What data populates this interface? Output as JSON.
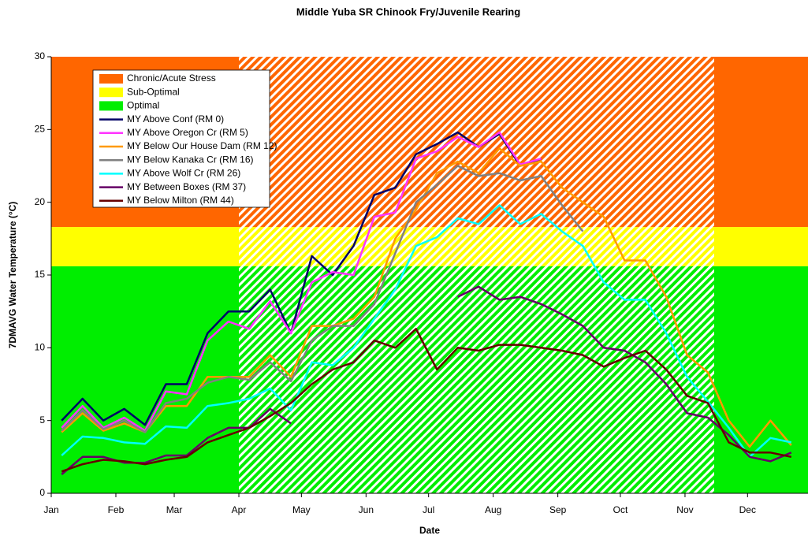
{
  "chart_data": {
    "type": "line",
    "title": "Middle Yuba SR Chinook Fry/Juvenile Rearing",
    "x_label": "Date",
    "y_label": "7DMAVG Water Temperature (°C)",
    "xlim": [
      0,
      363
    ],
    "ylim": [
      0,
      30
    ],
    "yticks": [
      0,
      5,
      10,
      15,
      20,
      25,
      30
    ],
    "xticks": [
      {
        "value": 0,
        "label": "Jan"
      },
      {
        "value": 31,
        "label": "Feb"
      },
      {
        "value": 59,
        "label": "Mar"
      },
      {
        "value": 90,
        "label": "Apr"
      },
      {
        "value": 120,
        "label": "May"
      },
      {
        "value": 151,
        "label": "Jun"
      },
      {
        "value": 181,
        "label": "Jul"
      },
      {
        "value": 212,
        "label": "Aug"
      },
      {
        "value": 243,
        "label": "Sep"
      },
      {
        "value": 273,
        "label": "Oct"
      },
      {
        "value": 304,
        "label": "Nov"
      },
      {
        "value": 334,
        "label": "Dec"
      }
    ],
    "zones": [
      {
        "name": "Chronic/Acute Stress",
        "color": "#ff6600",
        "ymin": 18.3,
        "ymax": 30
      },
      {
        "name": "Sub-Optimal",
        "color": "#ffff00",
        "ymin": 15.6,
        "ymax": 18.3
      },
      {
        "name": "Optimal",
        "color": "#00ee00",
        "ymin": 0,
        "ymax": 15.6
      }
    ],
    "hatch_x": [
      90,
      318
    ],
    "x": [
      5,
      15,
      25,
      35,
      45,
      55,
      65,
      75,
      85,
      95,
      105,
      115,
      125,
      135,
      145,
      155,
      165,
      175,
      185,
      195,
      205,
      215,
      225,
      235,
      245,
      255,
      265,
      275,
      285,
      295,
      305,
      315,
      325,
      335,
      345,
      355
    ],
    "series": [
      {
        "name": "MY Above Conf (RM 0)",
        "color": "#000066",
        "values": [
          5,
          6.5,
          5,
          5.8,
          4.7,
          7.5,
          7.5,
          11,
          12.5,
          12.5,
          14,
          11,
          16.3,
          15,
          17,
          20.5,
          21,
          23.3,
          24,
          24.8,
          23.8,
          24.7,
          22.5,
          23,
          null,
          null,
          null,
          null,
          null,
          null,
          null,
          null,
          null,
          null,
          null,
          null
        ]
      },
      {
        "name": "MY Above Oregon Cr (RM 5)",
        "color": "#ff33ff",
        "values": [
          4.5,
          6,
          4.5,
          5.2,
          4.3,
          7,
          6.8,
          10.5,
          11.8,
          11.3,
          13.2,
          11,
          14.5,
          15.2,
          15,
          19,
          19.3,
          23,
          23.5,
          24.5,
          23.8,
          24.8,
          22.6,
          23,
          null,
          null,
          null,
          null,
          null,
          null,
          null,
          null,
          null,
          null,
          null,
          null
        ]
      },
      {
        "name": "MY Below Our House Dam (RM 12)",
        "color": "#ff9900",
        "values": [
          4.2,
          5.5,
          4.3,
          4.8,
          4.2,
          6,
          6,
          8,
          8,
          8,
          9.5,
          8,
          11.5,
          11.5,
          12,
          13.5,
          17.5,
          19.5,
          22,
          22.8,
          22,
          23.7,
          22.5,
          22.8,
          21,
          20,
          19,
          16,
          16,
          13.5,
          9.5,
          8.3,
          5,
          3.2,
          5,
          3.3
        ]
      },
      {
        "name": "MY Below Kanaka Cr (RM 16)",
        "color": "#808080",
        "values": [
          4.3,
          5.7,
          4.4,
          5,
          4.2,
          6.2,
          6.5,
          7.6,
          8,
          7.8,
          9,
          7.7,
          10.5,
          11.5,
          11.5,
          13,
          16.5,
          20,
          21.2,
          22.5,
          21.8,
          22,
          21.5,
          21.8,
          19.8,
          18,
          null,
          null,
          null,
          null,
          null,
          null,
          null,
          null,
          null,
          null
        ]
      },
      {
        "name": "MY Above Wolf Cr (RM 26)",
        "color": "#00ffff",
        "values": [
          2.6,
          3.9,
          3.8,
          3.5,
          3.4,
          4.6,
          4.5,
          6,
          6.2,
          6.5,
          7.2,
          5.7,
          9,
          8.8,
          10,
          12,
          14,
          17,
          17.6,
          18.9,
          18.5,
          19.8,
          18.5,
          19.2,
          18,
          17,
          14.5,
          13.3,
          13.3,
          11,
          8,
          6.3,
          4.5,
          2.5,
          3.8,
          3.5
        ]
      },
      {
        "name": "MY Between Boxes (RM 37)",
        "color": "#660066",
        "values": [
          1.3,
          2.5,
          2.5,
          2.1,
          2.1,
          2.6,
          2.6,
          3.8,
          4.5,
          4.5,
          5.8,
          4.8,
          null,
          null,
          null,
          null,
          null,
          null,
          null,
          13.5,
          14.2,
          13.3,
          13.5,
          13,
          12.3,
          11.5,
          10,
          9.8,
          9,
          7.5,
          5.5,
          5.2,
          4,
          2.5,
          2.2,
          2.8
        ]
      },
      {
        "name": "MY Below Milton (RM 44)",
        "color": "#660000",
        "values": [
          1.5,
          2,
          2.3,
          2.2,
          2,
          2.3,
          2.5,
          3.5,
          4,
          4.5,
          5.3,
          6.2,
          7.5,
          8.5,
          9,
          10.5,
          10,
          11.3,
          8.5,
          10,
          9.8,
          10.2,
          10.2,
          10,
          9.8,
          9.5,
          8.7,
          9.3,
          9.8,
          8.5,
          6.7,
          6.2,
          3.5,
          2.8,
          2.8,
          2.5
        ]
      }
    ]
  }
}
